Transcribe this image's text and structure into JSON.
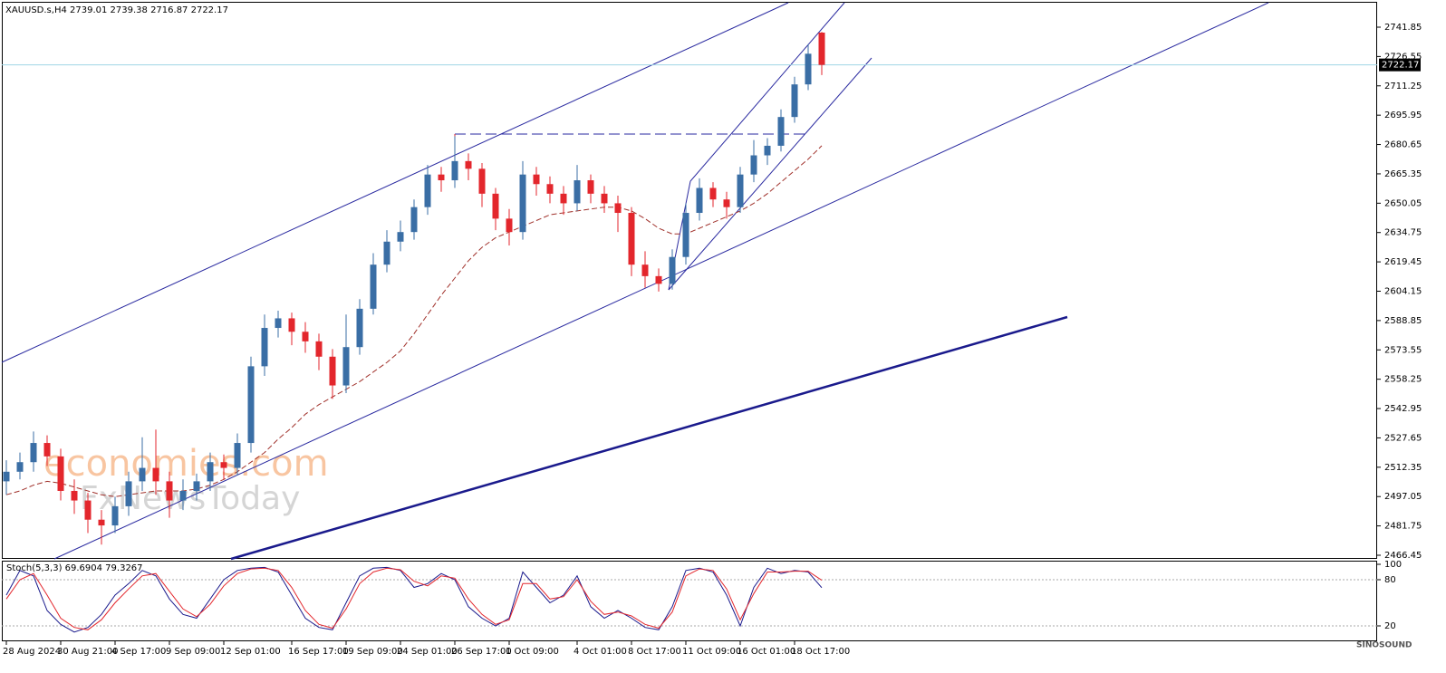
{
  "chart_data": [
    {
      "type": "candlestick",
      "title": "XAUUSD.s,H4  2739.01 2739.38 2716.87 2722.17",
      "watermarks": [
        "economies.com",
        "FxNewsToday"
      ],
      "logo": "SINOSOUND",
      "categories": [
        "28 Aug 2024",
        null,
        null,
        null,
        "30 Aug 21:00",
        null,
        null,
        null,
        "4 Sep 17:00",
        null,
        null,
        null,
        "9 Sep 09:00",
        null,
        null,
        null,
        "12 Sep 01:00",
        null,
        null,
        null,
        null,
        "16 Sep 17:00",
        null,
        null,
        null,
        "19 Sep 09:00",
        null,
        null,
        null,
        "24 Sep 01:00",
        null,
        null,
        null,
        "26 Sep 17:00",
        null,
        null,
        null,
        "1 Oct 09:00",
        null,
        null,
        null,
        null,
        "4 Oct 01:00",
        null,
        null,
        null,
        "8 Oct 17:00",
        null,
        null,
        null,
        "11 Oct 09:00",
        null,
        null,
        null,
        "16 Oct 01:00",
        null,
        null,
        null,
        "18 Oct 17:00",
        null,
        null
      ],
      "open": [
        2505,
        2510,
        2515,
        2525,
        2518,
        2500,
        2495,
        2485,
        2482,
        2492,
        2505,
        2512,
        2505,
        2495,
        2500,
        2505,
        2515,
        2512,
        2525,
        2565,
        2585,
        2590,
        2583,
        2578,
        2570,
        2555,
        2575,
        2595,
        2618,
        2630,
        2635,
        2648,
        2665,
        2662,
        2672,
        2668,
        2655,
        2642,
        2635,
        2665,
        2660,
        2655,
        2650,
        2662,
        2655,
        2650,
        2645,
        2618,
        2612,
        2608,
        2622,
        2645,
        2658,
        2652,
        2648,
        2665,
        2675,
        2680,
        2695,
        2712,
        2739.01
      ],
      "high": [
        2516,
        2520,
        2531,
        2529,
        2522,
        2506,
        2499,
        2490,
        2497,
        2510,
        2528,
        2532,
        2510,
        2506,
        2509,
        2520,
        2519,
        2530,
        2570,
        2592,
        2594,
        2593,
        2588,
        2582,
        2574,
        2592,
        2600,
        2624,
        2636,
        2641,
        2652,
        2670,
        2669,
        2685,
        2676,
        2671,
        2658,
        2647,
        2672,
        2669,
        2664,
        2659,
        2670,
        2665,
        2659,
        2654,
        2648,
        2625,
        2616,
        2626,
        2650,
        2663,
        2661,
        2656,
        2669,
        2683,
        2684,
        2699,
        2716,
        2733,
        2739.38
      ],
      "low": [
        2498,
        2506,
        2510,
        2513,
        2495,
        2488,
        2478,
        2472,
        2478,
        2487,
        2500,
        2498,
        2486,
        2490,
        2495,
        2500,
        2506,
        2508,
        2520,
        2560,
        2580,
        2576,
        2572,
        2563,
        2548,
        2551,
        2571,
        2592,
        2614,
        2625,
        2631,
        2644,
        2656,
        2658,
        2662,
        2648,
        2636,
        2628,
        2631,
        2654,
        2650,
        2644,
        2646,
        2650,
        2645,
        2635,
        2612,
        2606,
        2604,
        2605,
        2618,
        2641,
        2648,
        2642,
        2645,
        2661,
        2670,
        2677,
        2692,
        2709,
        2716.87
      ],
      "close": [
        2510,
        2515,
        2525,
        2518,
        2500,
        2495,
        2485,
        2482,
        2492,
        2505,
        2512,
        2505,
        2495,
        2500,
        2505,
        2515,
        2512,
        2525,
        2565,
        2585,
        2590,
        2583,
        2578,
        2570,
        2555,
        2575,
        2595,
        2618,
        2630,
        2635,
        2648,
        2665,
        2662,
        2672,
        2668,
        2655,
        2642,
        2635,
        2665,
        2660,
        2655,
        2650,
        2662,
        2655,
        2650,
        2645,
        2618,
        2612,
        2608,
        2622,
        2645,
        2658,
        2652,
        2648,
        2665,
        2675,
        2680,
        2695,
        2712,
        2728,
        2722.17
      ],
      "up_color": "#3a6ea5",
      "down_color": "#e3262c",
      "ma": {
        "color": "#a0302a",
        "values": [
          2498,
          2500,
          2503,
          2505,
          2504,
          2502,
          2500,
          2498,
          2497,
          2498,
          2499,
          2500,
          2500,
          2500,
          2501,
          2503,
          2506,
          2510,
          2515,
          2520,
          2527,
          2533,
          2540,
          2545,
          2549,
          2553,
          2557,
          2562,
          2567,
          2573,
          2582,
          2592,
          2602,
          2611,
          2620,
          2627,
          2632,
          2635,
          2638,
          2641,
          2644,
          2645,
          2646,
          2647,
          2648,
          2648,
          2646,
          2642,
          2637,
          2634,
          2634,
          2637,
          2640,
          2643,
          2646,
          2650,
          2655,
          2661,
          2667,
          2673,
          2680
        ]
      },
      "current_price": 2722.17,
      "ylim": [
        2464.56,
        2754.6
      ],
      "yticks": [
        2741.85,
        2726.55,
        2711.25,
        2695.95,
        2680.65,
        2665.35,
        2650.05,
        2634.75,
        2619.45,
        2604.15,
        2588.85,
        2573.55,
        2558.25,
        2542.95,
        2527.65,
        2512.35,
        2497.05,
        2481.75,
        2466.45
      ]
    },
    {
      "type": "line",
      "title": "Stoch(5,3,3) 69.6904 79.3267",
      "series": [
        {
          "color": "#1a1a8c",
          "values": [
            60,
            92,
            85,
            40,
            22,
            12,
            18,
            35,
            60,
            75,
            92,
            85,
            55,
            35,
            30,
            55,
            80,
            92,
            95,
            96,
            90,
            60,
            30,
            18,
            15,
            50,
            85,
            95,
            96,
            92,
            70,
            75,
            88,
            80,
            45,
            30,
            20,
            30,
            90,
            70,
            50,
            60,
            85,
            45,
            30,
            40,
            30,
            18,
            15,
            45,
            92,
            95,
            90,
            60,
            20,
            70,
            95,
            88,
            92,
            90,
            69.6904
          ]
        },
        {
          "color": "#e3262c",
          "values": [
            55,
            80,
            88,
            60,
            30,
            18,
            15,
            28,
            50,
            68,
            85,
            88,
            65,
            42,
            32,
            48,
            72,
            88,
            94,
            95,
            92,
            70,
            40,
            22,
            17,
            42,
            75,
            90,
            95,
            93,
            78,
            72,
            85,
            82,
            55,
            35,
            22,
            28,
            75,
            75,
            55,
            58,
            80,
            52,
            35,
            38,
            33,
            22,
            17,
            38,
            85,
            94,
            92,
            68,
            28,
            62,
            90,
            90,
            91,
            91,
            79.3267
          ]
        }
      ],
      "ylim": [
        0,
        100
      ],
      "yticks": [
        100,
        80,
        20
      ]
    }
  ]
}
